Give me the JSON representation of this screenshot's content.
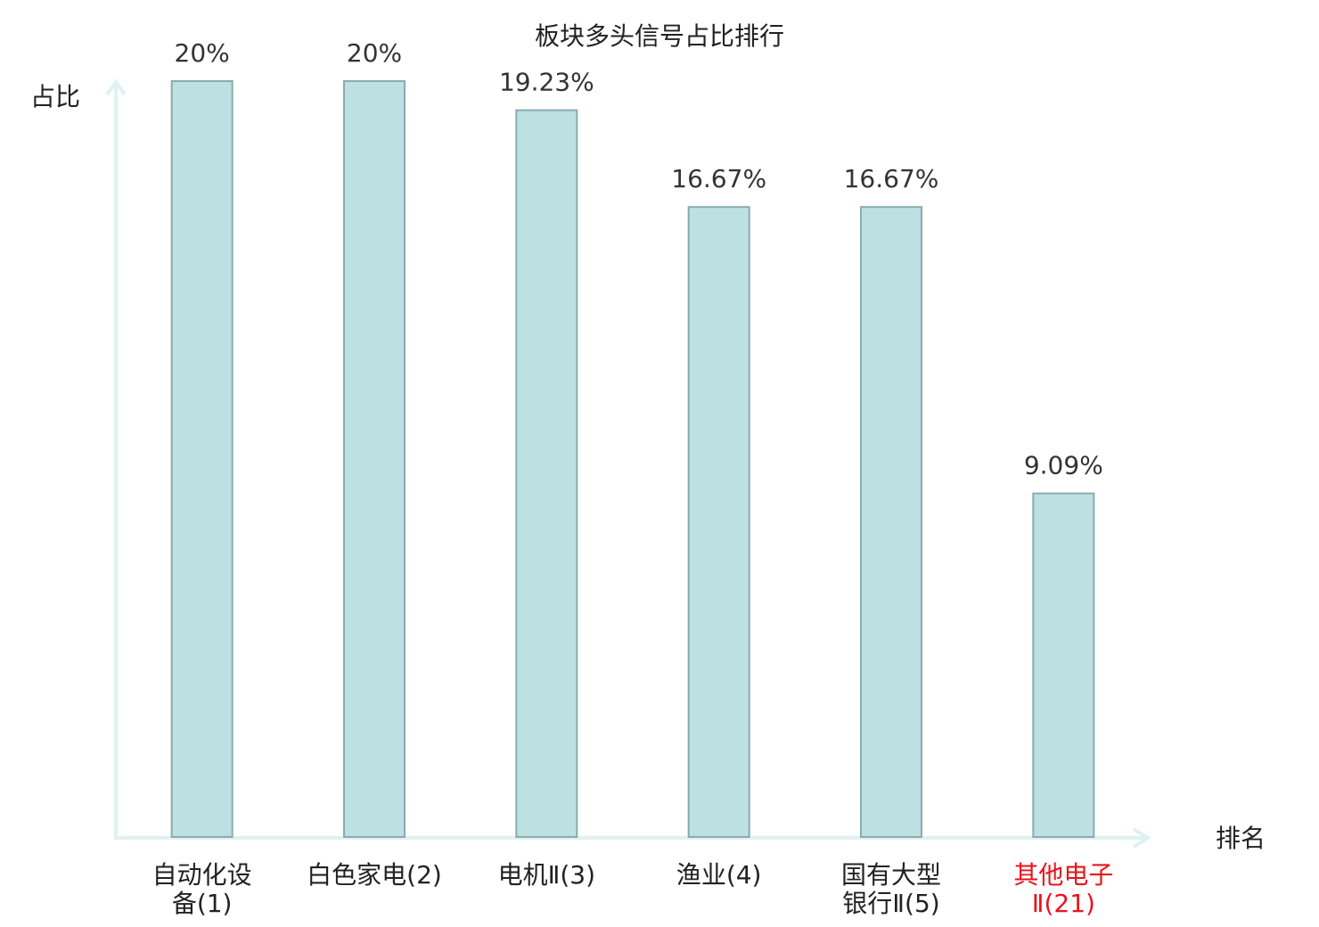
{
  "chart_data": {
    "type": "bar",
    "title": "板块多头信号占比排行",
    "y_label": "占比",
    "x_label": "排名",
    "categories": [
      "自动化设\n备(1)",
      "白色家电(2)",
      "电机Ⅱ(3)",
      "渔业(4)",
      "国有大型\n银行Ⅱ(5)",
      "其他电子\nⅡ(21)"
    ],
    "label_colors": [
      "#222222",
      "#222222",
      "#222222",
      "#222222",
      "#222222",
      "#e8141b"
    ],
    "values": [
      20,
      20,
      19.23,
      16.67,
      16.67,
      9.09
    ],
    "value_labels": [
      "20%",
      "20%",
      "19.23%",
      "16.67%",
      "16.67%",
      "9.09%"
    ],
    "color": "#bde1e3",
    "edge_color": "#8aabad",
    "ylim": [
      0,
      20
    ]
  }
}
